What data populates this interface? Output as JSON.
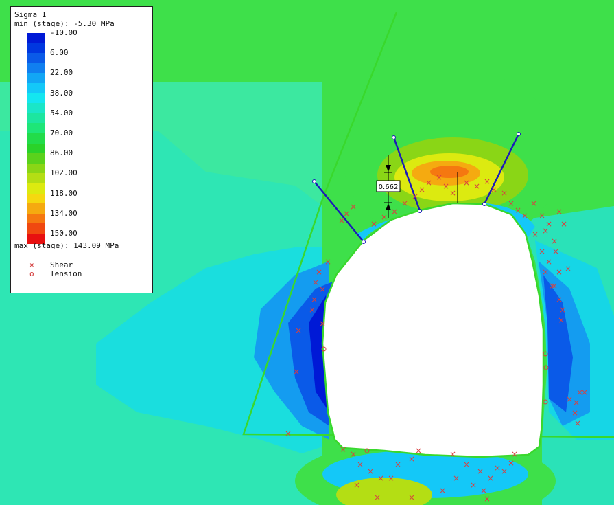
{
  "legend": {
    "title": "Sigma 1",
    "min_text": "min (stage): -5.30 MPa",
    "max_text": "max (stage): 143.09 MPa",
    "levels": [
      {
        "label": "-10.00",
        "color": "#0019d6"
      },
      {
        "label": "",
        "color": "#0037e0"
      },
      {
        "label": "6.00",
        "color": "#0a5ae8"
      },
      {
        "label": "",
        "color": "#107ff0"
      },
      {
        "label": "22.00",
        "color": "#12a6f5"
      },
      {
        "label": "",
        "color": "#14c8f8"
      },
      {
        "label": "38.00",
        "color": "#14e6f0"
      },
      {
        "label": "",
        "color": "#1ae6c8"
      },
      {
        "label": "54.00",
        "color": "#1ce6a0"
      },
      {
        "label": "",
        "color": "#1ee678"
      },
      {
        "label": "70.00",
        "color": "#22dc4a"
      },
      {
        "label": "",
        "color": "#2ad22a"
      },
      {
        "label": "86.00",
        "color": "#5ad21c"
      },
      {
        "label": "",
        "color": "#8ad616"
      },
      {
        "label": "102.00",
        "color": "#b4de14"
      },
      {
        "label": "",
        "color": "#dcea10"
      },
      {
        "label": "118.00",
        "color": "#f5d810"
      },
      {
        "label": "",
        "color": "#f5aa10"
      },
      {
        "label": "134.00",
        "color": "#f57810"
      },
      {
        "label": "",
        "color": "#f04810"
      },
      {
        "label": "150.00",
        "color": "#e81010"
      }
    ],
    "markers": [
      {
        "symbol": "×",
        "label": "Shear"
      },
      {
        "symbol": "o",
        "label": "Tension"
      }
    ]
  },
  "dimension_label": "0.662",
  "colors": {
    "background_green": "#3ee04a",
    "boundary_line": "#39d82c",
    "bolt": "#1a1ab8",
    "excavation": "#ffffff",
    "yield_marker": "#d84040"
  }
}
